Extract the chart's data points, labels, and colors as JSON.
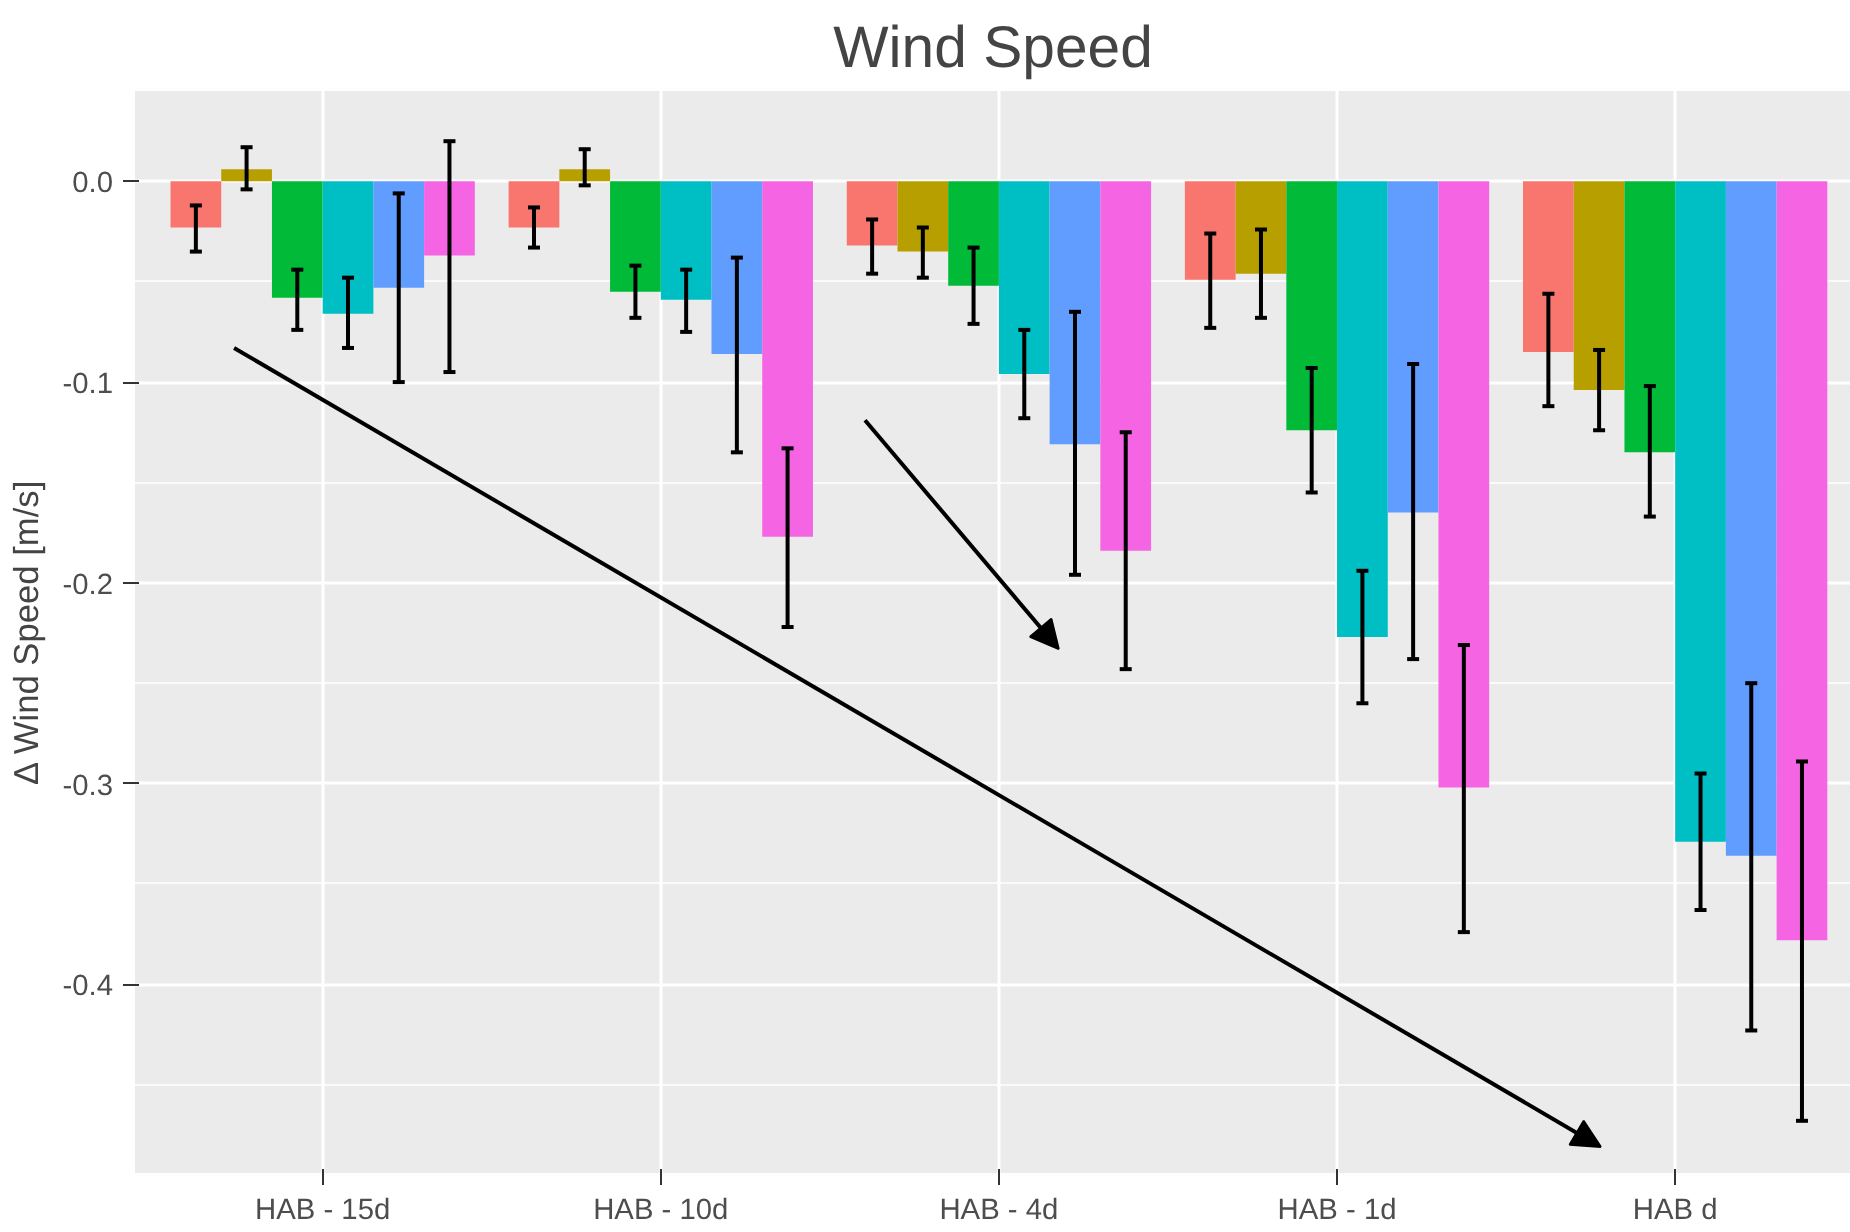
{
  "chart_data": {
    "type": "bar",
    "title": "Wind Speed",
    "ylabel": "Δ Wind Speed [m/s]",
    "categories": [
      "HAB - 15d",
      "HAB - 10d",
      "HAB - 4d",
      "HAB - 1d",
      "HAB d"
    ],
    "series": [
      {
        "color": "#f8766d",
        "values": [
          -0.023,
          -0.023,
          -0.032,
          -0.049,
          -0.085
        ],
        "errors": [
          [
            -0.035,
            -0.012
          ],
          [
            -0.033,
            -0.013
          ],
          [
            -0.046,
            -0.019
          ],
          [
            -0.073,
            -0.026
          ],
          [
            -0.112,
            -0.056
          ]
        ]
      },
      {
        "color": "#b79f00",
        "values": [
          0.006,
          0.006,
          -0.035,
          -0.046,
          -0.104
        ],
        "errors": [
          [
            -0.004,
            0.017
          ],
          [
            -0.002,
            0.016
          ],
          [
            -0.048,
            -0.023
          ],
          [
            -0.068,
            -0.024
          ],
          [
            -0.124,
            -0.084
          ]
        ]
      },
      {
        "color": "#00ba38",
        "values": [
          -0.058,
          -0.055,
          -0.052,
          -0.124,
          -0.135
        ],
        "errors": [
          [
            -0.074,
            -0.044
          ],
          [
            -0.068,
            -0.042
          ],
          [
            -0.071,
            -0.033
          ],
          [
            -0.155,
            -0.093
          ],
          [
            -0.167,
            -0.102
          ]
        ]
      },
      {
        "color": "#00bfc4",
        "values": [
          -0.066,
          -0.059,
          -0.096,
          -0.227,
          -0.329
        ],
        "errors": [
          [
            -0.083,
            -0.048
          ],
          [
            -0.075,
            -0.044
          ],
          [
            -0.118,
            -0.074
          ],
          [
            -0.26,
            -0.194
          ],
          [
            -0.363,
            -0.295
          ]
        ]
      },
      {
        "color": "#619cff",
        "values": [
          -0.053,
          -0.086,
          -0.131,
          -0.165,
          -0.336
        ],
        "errors": [
          [
            -0.1,
            -0.006
          ],
          [
            -0.135,
            -0.038
          ],
          [
            -0.196,
            -0.065
          ],
          [
            -0.238,
            -0.091
          ],
          [
            -0.423,
            -0.25
          ]
        ]
      },
      {
        "color": "#f564e3",
        "values": [
          -0.037,
          -0.177,
          -0.184,
          -0.302,
          -0.378
        ],
        "errors": [
          [
            -0.095,
            0.02
          ],
          [
            -0.222,
            -0.133
          ],
          [
            -0.243,
            -0.125
          ],
          [
            -0.374,
            -0.231
          ],
          [
            -0.468,
            -0.289
          ]
        ]
      }
    ],
    "ylim": [
      -0.494,
      0.045
    ],
    "yticks": [
      {
        "value": 0,
        "label": "0.0"
      },
      -0.1,
      -0.2,
      -0.3,
      -0.4
    ],
    "grid": true
  }
}
